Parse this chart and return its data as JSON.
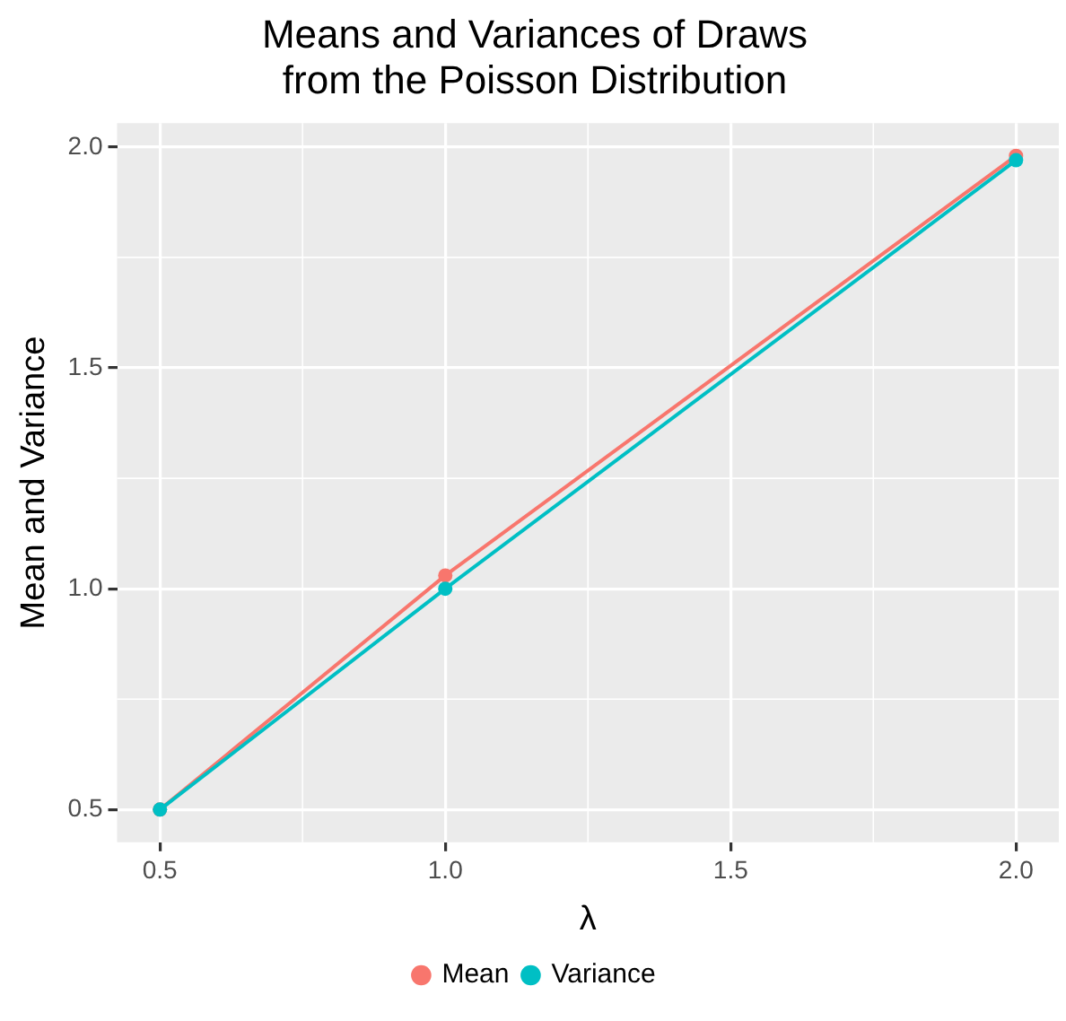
{
  "chart_data": {
    "type": "line",
    "title": [
      "Means and Variances of Draws",
      "from the Poisson Distribution"
    ],
    "xlabel": "λ",
    "ylabel": "Mean and Variance",
    "x": [
      0.5,
      1.0,
      2.0
    ],
    "series": [
      {
        "name": "Mean",
        "color": "#f8766d",
        "values": [
          0.5,
          1.03,
          1.98
        ]
      },
      {
        "name": "Variance",
        "color": "#00bfc4",
        "values": [
          0.5,
          1.0,
          1.97
        ]
      }
    ],
    "xlim": [
      0.425,
      2.075
    ],
    "xticks": [
      {
        "value": 0.5,
        "label": "0.5"
      },
      {
        "value": 1,
        "label": "1.0"
      },
      {
        "value": 1.5,
        "label": "1.5"
      },
      {
        "value": 2,
        "label": "2.0"
      }
    ],
    "ylim": [
      0.426,
      2.054
    ],
    "yticks": [
      {
        "value": 0.5,
        "label": "0.5"
      },
      {
        "value": 1,
        "label": "1.0"
      },
      {
        "value": 1.5,
        "label": "1.5"
      },
      {
        "value": 2,
        "label": "2.0"
      }
    ],
    "grid": true,
    "legend": "bottom",
    "marker": "circle",
    "line_style": "solid"
  }
}
